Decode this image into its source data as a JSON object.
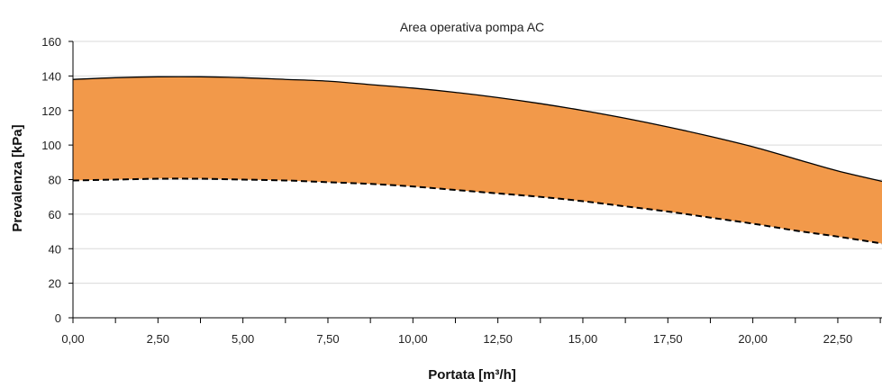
{
  "chart_data": {
    "type": "area",
    "title": "Area operativa pompa AC",
    "xlabel": "Portata [m³/h]",
    "ylabel": "Prevalenza [kPa]",
    "xlim": [
      0,
      23.8
    ],
    "ylim": [
      0,
      160
    ],
    "x_ticks": [
      "0,00",
      "2,50",
      "5,00",
      "7,50",
      "10,00",
      "12,50",
      "15,00",
      "17,50",
      "20,00",
      "22,50"
    ],
    "y_ticks": [
      "0",
      "20",
      "40",
      "60",
      "80",
      "100",
      "120",
      "140",
      "160"
    ],
    "grid": "horizontal",
    "legend": "none",
    "x": [
      0,
      1.25,
      2.5,
      3.75,
      5,
      6.25,
      7.5,
      8.75,
      10,
      11.25,
      12.5,
      13.75,
      15,
      16.25,
      17.5,
      18.75,
      20,
      21.25,
      22.5,
      23.8
    ],
    "series": [
      {
        "role": "upper",
        "style": "solid",
        "values": [
          138,
          139,
          139.5,
          139.5,
          139,
          138,
          137,
          135,
          133,
          130.5,
          127.5,
          124,
          120,
          115.5,
          110.5,
          105,
          99,
          92,
          85,
          79
        ]
      },
      {
        "role": "lower",
        "style": "dashed",
        "values": [
          79.5,
          80,
          80.5,
          80.5,
          80,
          79.5,
          78.5,
          77.5,
          76,
          74,
          72,
          70,
          67.5,
          64.5,
          61.5,
          58,
          54.5,
          50.5,
          47,
          43
        ]
      }
    ],
    "colors": {
      "fill": "#F2994A",
      "line": "#000000",
      "grid": "#D9D9D9",
      "axis": "#000000"
    }
  }
}
